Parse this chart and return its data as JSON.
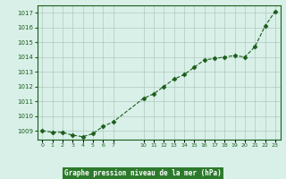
{
  "x": [
    0,
    1,
    2,
    3,
    4,
    5,
    6,
    7,
    10,
    11,
    12,
    13,
    14,
    15,
    16,
    17,
    18,
    19,
    20,
    21,
    22,
    23
  ],
  "y": [
    1009.0,
    1008.9,
    1008.9,
    1008.7,
    1008.6,
    1008.8,
    1009.3,
    1009.6,
    1011.2,
    1011.5,
    1012.0,
    1012.5,
    1012.8,
    1013.3,
    1013.8,
    1013.9,
    1014.0,
    1014.1,
    1014.0,
    1014.7,
    1016.1,
    1017.1
  ],
  "line_color": "#1a5c1a",
  "marker_color": "#1a5c1a",
  "bg_color": "#d8f0e8",
  "grid_color_minor": "#c8e0d8",
  "grid_color_major": "#b0c8c0",
  "xlabel": "Graphe pression niveau de la mer (hPa)",
  "ylim_min": 1008.4,
  "ylim_max": 1017.5,
  "yticks": [
    1009,
    1010,
    1011,
    1012,
    1013,
    1014,
    1015,
    1016,
    1017
  ],
  "xticks": [
    0,
    1,
    2,
    3,
    4,
    5,
    6,
    7,
    10,
    11,
    12,
    13,
    14,
    15,
    16,
    17,
    18,
    19,
    20,
    21,
    22,
    23
  ],
  "tick_color": "#1a5c1a",
  "spine_color": "#1a5c1a",
  "bottom_bar_color": "#2d7a2d"
}
